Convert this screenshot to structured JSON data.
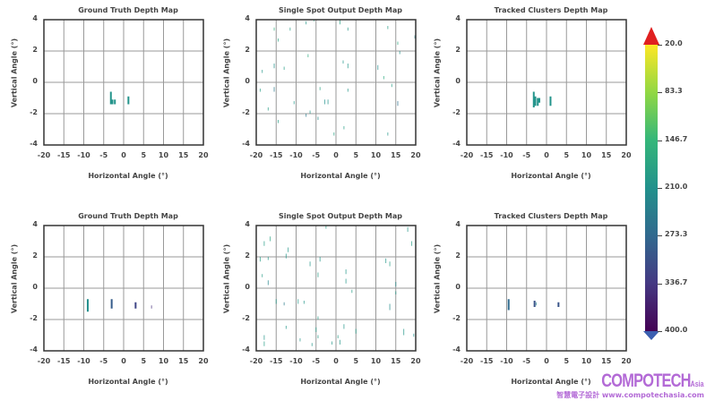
{
  "colorbar": {
    "ticks": [
      "20.0",
      "83.3",
      "146.7",
      "210.0",
      "273.3",
      "336.7",
      "400.0"
    ],
    "min": 20,
    "max": 400,
    "over_color": "#e02020",
    "under_color": "#3b5fb0",
    "colormap": "viridis_r"
  },
  "watermark": {
    "brand": "COMPOTECH",
    "suffix": "Asia",
    "sub": "智慧電子設計 www.compotechasia.com"
  },
  "chart_data": [
    {
      "type": "scatter",
      "title": "Ground Truth Depth Map",
      "xlabel": "Horizontal Angle (°)",
      "ylabel": "Vertical Angle (°)",
      "xlim": [
        -20,
        20
      ],
      "ylim": [
        -4,
        4
      ],
      "xticks": [
        "-20",
        "-15",
        "-10",
        "-5",
        "0",
        "5",
        "10",
        "15",
        "20"
      ],
      "yticks": [
        "4",
        "2",
        "0",
        "-2",
        "-4"
      ],
      "grid": true,
      "segments": [
        [
          -3.2,
          -0.6,
          -1.4,
          205
        ],
        [
          -2.8,
          -1.1,
          -1.4,
          205
        ],
        [
          -2.2,
          -1.1,
          -1.4,
          205
        ],
        [
          1.2,
          -0.9,
          -1.4,
          205
        ]
      ]
    },
    {
      "type": "scatter",
      "title": "Single Spot Output Depth Map",
      "xlabel": "Horizontal Angle (°)",
      "ylabel": "Vertical Angle (°)",
      "xlim": [
        -20,
        20
      ],
      "ylim": [
        -4,
        4
      ],
      "xticks": [
        "-20",
        "-15",
        "-10",
        "-5",
        "0",
        "5",
        "10",
        "15",
        "20"
      ],
      "yticks": [
        "4",
        "2",
        "0",
        "-2",
        "-4"
      ],
      "grid": true,
      "segments": [
        [
          -2.8,
          -1.1,
          -1.4,
          210
        ],
        [
          -2.0,
          -1.1,
          -1.4,
          210
        ],
        [
          -15.5,
          3.3,
          3.5,
          160
        ],
        [
          -14.5,
          2.6,
          2.8,
          180
        ],
        [
          -11.5,
          3.3,
          3.5,
          190
        ],
        [
          -7.5,
          3.7,
          3.9,
          200
        ],
        [
          -7,
          1.6,
          1.8,
          170
        ],
        [
          -5.5,
          3.9,
          4,
          180
        ],
        [
          1,
          3.7,
          4,
          190
        ],
        [
          3,
          3.3,
          3.5,
          200
        ],
        [
          13,
          3.4,
          3.6,
          190
        ],
        [
          15.5,
          2.4,
          2.6,
          170
        ],
        [
          19.8,
          2.8,
          3.0,
          230
        ],
        [
          16,
          1.8,
          2.0,
          210
        ],
        [
          -18.5,
          0.6,
          0.8,
          200
        ],
        [
          -15.5,
          0.9,
          1.2,
          210
        ],
        [
          -13,
          0.8,
          1.0,
          190
        ],
        [
          1.8,
          1.2,
          1.4,
          200
        ],
        [
          3,
          0.9,
          1.2,
          200
        ],
        [
          10.5,
          0.8,
          1.1,
          220
        ],
        [
          12,
          0.2,
          0.4,
          170
        ],
        [
          -19,
          -0.6,
          -0.4,
          190
        ],
        [
          -15.5,
          -0.6,
          -0.3,
          250
        ],
        [
          -10.5,
          -1.4,
          -1.2,
          200
        ],
        [
          -4,
          -0.5,
          -0.3,
          180
        ],
        [
          3,
          -0.6,
          -0.4,
          200
        ],
        [
          14,
          -0.3,
          -0.1,
          190
        ],
        [
          15.5,
          -1.5,
          -1.2,
          260
        ],
        [
          -17,
          -1.8,
          -1.6,
          190
        ],
        [
          -7.5,
          -2.2,
          -2.0,
          250
        ],
        [
          -4.5,
          -2.4,
          -2.2,
          220
        ],
        [
          -14.5,
          -2.6,
          -2.4,
          190
        ],
        [
          -6.5,
          -2.0,
          -1.8,
          200
        ],
        [
          -0.5,
          -3.4,
          -3.2,
          180
        ],
        [
          2,
          -3.0,
          -2.8,
          190
        ],
        [
          13,
          -3.4,
          -3.2,
          200
        ],
        [
          -20,
          -1.8,
          -1.6,
          220
        ]
      ]
    },
    {
      "type": "scatter",
      "title": "Tracked Clusters Depth Map",
      "xlabel": "Horizontal Angle (°)",
      "ylabel": "Vertical Angle (°)",
      "xlim": [
        -20,
        20
      ],
      "ylim": [
        -4,
        4
      ],
      "xticks": [
        "-20",
        "-15",
        "-10",
        "-5",
        "0",
        "5",
        "10",
        "15",
        "20"
      ],
      "yticks": [
        "4",
        "2",
        "0",
        "-2",
        "-4"
      ],
      "grid": true,
      "segments": [
        [
          -3.2,
          -0.6,
          -1.6,
          205
        ],
        [
          -2.8,
          -0.9,
          -1.5,
          205
        ],
        [
          -2.2,
          -1.0,
          -1.5,
          205
        ],
        [
          -1.8,
          -1.0,
          -1.3,
          205
        ],
        [
          1.0,
          -0.9,
          -1.5,
          205
        ]
      ]
    },
    {
      "type": "scatter",
      "title": "Ground Truth Depth Map",
      "xlabel": "Horizontal Angle (°)",
      "ylabel": "Vertical Angle (°)",
      "xlim": [
        -20,
        20
      ],
      "ylim": [
        -4,
        4
      ],
      "xticks": [
        "-20",
        "-15",
        "-10",
        "-5",
        "0",
        "5",
        "10",
        "15",
        "20"
      ],
      "yticks": [
        "4",
        "2",
        "0",
        "-2",
        "-4"
      ],
      "grid": true,
      "segments": [
        [
          -9,
          -0.7,
          -1.5,
          215
        ],
        [
          -3,
          -0.7,
          -1.3,
          290
        ],
        [
          3,
          -0.9,
          -1.3,
          320
        ],
        [
          7,
          -1.1,
          -1.3,
          350
        ]
      ]
    },
    {
      "type": "scatter",
      "title": "Single Spot Output Depth Map",
      "xlabel": "Horizontal Angle (°)",
      "ylabel": "Vertical Angle (°)",
      "xlim": [
        -20,
        20
      ],
      "ylim": [
        -4,
        4
      ],
      "xticks": [
        "-20",
        "-15",
        "-10",
        "-5",
        "0",
        "5",
        "10",
        "15",
        "20"
      ],
      "yticks": [
        "4",
        "2",
        "0",
        "-2",
        "-4"
      ],
      "grid": true,
      "segments": [
        [
          -18,
          2.7,
          3.0,
          190
        ],
        [
          -16.5,
          3.0,
          3.3,
          180
        ],
        [
          -12,
          2.3,
          2.6,
          200
        ],
        [
          -2.5,
          3.8,
          4.0,
          190
        ],
        [
          12.5,
          1.6,
          1.9,
          200
        ],
        [
          13.5,
          1.4,
          1.7,
          190
        ],
        [
          18,
          3.6,
          3.9,
          200
        ],
        [
          19,
          2.7,
          3.0,
          190
        ],
        [
          -19,
          1.7,
          2.0,
          190
        ],
        [
          -17,
          1.8,
          2.0,
          200
        ],
        [
          -12.5,
          1.9,
          2.2,
          200
        ],
        [
          -6.5,
          1.4,
          1.7,
          200
        ],
        [
          -4,
          1.7,
          2.0,
          200
        ],
        [
          -4.5,
          0.7,
          1.0,
          190
        ],
        [
          -17,
          0.2,
          0.5,
          230
        ],
        [
          -18.5,
          0.7,
          0.9,
          190
        ],
        [
          2.5,
          0.9,
          1.2,
          200
        ],
        [
          2.5,
          0.3,
          0.6,
          200
        ],
        [
          4,
          -0.3,
          -0.1,
          190
        ],
        [
          15,
          0.1,
          0.4,
          220
        ],
        [
          -15,
          -1.0,
          -0.7,
          200
        ],
        [
          -13,
          -1.1,
          -0.9,
          250
        ],
        [
          -9.5,
          -1.0,
          -0.7,
          200
        ],
        [
          -8,
          -1.0,
          -0.8,
          200
        ],
        [
          -4.5,
          -2.0,
          -1.8,
          190
        ],
        [
          13.5,
          -1.4,
          -1.0,
          220
        ],
        [
          15,
          -0.4,
          -0.2,
          200
        ],
        [
          -12.5,
          -2.6,
          -2.4,
          200
        ],
        [
          -5,
          -2.8,
          -2.5,
          190
        ],
        [
          -4.5,
          -3.2,
          -3.0,
          190
        ],
        [
          2,
          -2.6,
          -2.3,
          200
        ],
        [
          5,
          -2.9,
          -2.6,
          190
        ],
        [
          0.5,
          -3.2,
          -3.0,
          190
        ],
        [
          1,
          -3.6,
          -3.3,
          200
        ],
        [
          -18,
          -3.3,
          -3.0,
          200
        ],
        [
          -18,
          -3.7,
          -3.4,
          190
        ],
        [
          -9,
          -3.4,
          -3.2,
          200
        ],
        [
          -6,
          -3.7,
          -3.5,
          200
        ],
        [
          -1,
          -3.6,
          -3.4,
          200
        ],
        [
          17,
          -3.0,
          -2.6,
          200
        ],
        [
          19.5,
          -3.1,
          -2.9,
          210
        ]
      ]
    },
    {
      "type": "scatter",
      "title": "Tracked Clusters Depth Map",
      "xlabel": "Horizontal Angle (°)",
      "ylabel": "Vertical Angle (°)",
      "xlim": [
        -20,
        20
      ],
      "ylim": [
        -4,
        4
      ],
      "xticks": [
        "-20",
        "-15",
        "-10",
        "-5",
        "0",
        "5",
        "10",
        "15",
        "20"
      ],
      "yticks": [
        "4",
        "2",
        "0",
        "-2",
        "-4"
      ],
      "grid": true,
      "segments": [
        [
          -9.5,
          -0.7,
          -1.4,
          270
        ],
        [
          -3,
          -0.8,
          -1.2,
          300
        ],
        [
          -2.6,
          -0.9,
          -1.1,
          230
        ],
        [
          3,
          -0.9,
          -1.2,
          300
        ]
      ]
    }
  ]
}
